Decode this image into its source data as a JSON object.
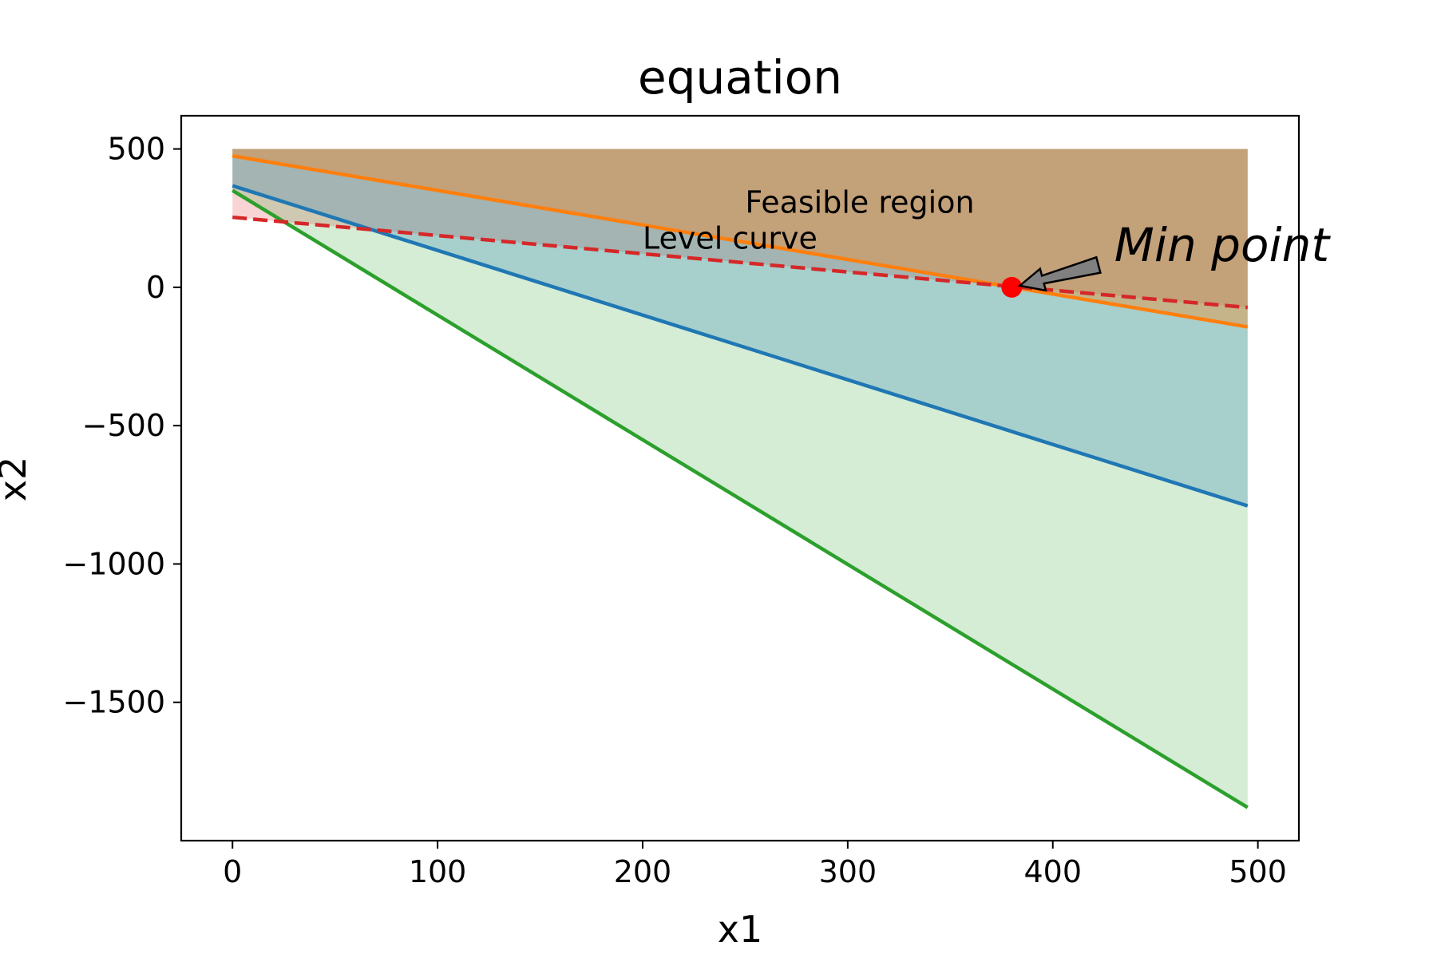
{
  "chart_data": {
    "type": "line",
    "title": "equation",
    "xlabel": "x1",
    "ylabel": "x2",
    "xlim": [
      -25,
      520
    ],
    "ylim": [
      -2000,
      620
    ],
    "x_ticks": [
      0,
      100,
      200,
      300,
      400,
      500
    ],
    "y_ticks": [
      500,
      0,
      -500,
      -1000,
      -1500
    ],
    "y_tick_labels": [
      "500",
      "0",
      "−500",
      "−1000",
      "−1500"
    ],
    "x_tick_labels": [
      "0",
      "100",
      "200",
      "300",
      "400",
      "500"
    ],
    "grid": false,
    "series": [
      {
        "x": [
          0,
          495
        ],
        "y": [
          367,
          -790
        ],
        "color": "#1f77b4",
        "style": "solid"
      },
      {
        "x": [
          0,
          495
        ],
        "y": [
          475,
          -143
        ],
        "color": "#ff7f0e",
        "style": "solid"
      },
      {
        "x": [
          0,
          495
        ],
        "y": [
          350,
          -1880
        ],
        "color": "#2ca02c",
        "style": "solid"
      },
      {
        "x": [
          0,
          495
        ],
        "y": [
          253,
          -73
        ],
        "color": "#d62728",
        "style": "dashed"
      }
    ],
    "fills": [
      {
        "x": [
          0,
          495
        ],
        "lower": [
          253,
          -73
        ],
        "upper": [
          500,
          500
        ],
        "color": "#f4b7b7",
        "opacity": 0.6
      },
      {
        "x": [
          0,
          495
        ],
        "lower": [
          350,
          -1880
        ],
        "upper": [
          500,
          500
        ],
        "color": "#2ca02c",
        "opacity": 0.2
      },
      {
        "x": [
          0,
          495
        ],
        "lower": [
          367,
          -790
        ],
        "upper": [
          500,
          500
        ],
        "color": "#1f77b4",
        "opacity": 0.25
      },
      {
        "x": [
          0,
          495
        ],
        "lower": [
          475,
          -143
        ],
        "upper": [
          500,
          500
        ],
        "color": "#ff7f0e",
        "opacity": 0.35
      }
    ],
    "min_point": {
      "x": 380,
      "y": 0,
      "color": "#ff0000"
    },
    "annotations": {
      "feasible_region": {
        "text": "Feasible region",
        "x": 250,
        "y": 270
      },
      "level_curve": {
        "text": "Level curve",
        "x": 200,
        "y": 140
      },
      "min_point": {
        "text": "Min point",
        "x": 430,
        "y": 95
      }
    }
  }
}
